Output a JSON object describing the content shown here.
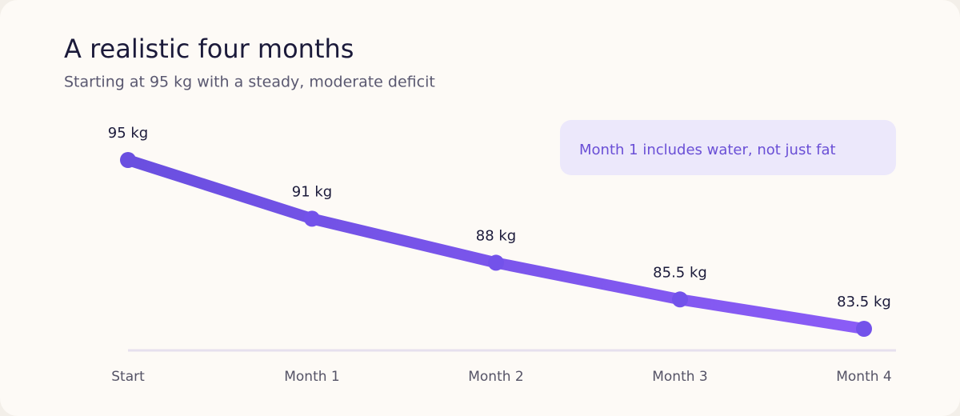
{
  "chart_data": {
    "type": "line",
    "title": "A realistic four months",
    "subtitle": "Starting at 95 kg with a steady, moderate deficit",
    "annotation": "Month 1 includes water, not just fat",
    "categories": [
      "Start",
      "Month 1",
      "Month 2",
      "Month 3",
      "Month 4"
    ],
    "values": [
      95,
      91,
      88,
      85.5,
      83.5
    ],
    "value_labels": [
      "95 kg",
      "91 kg",
      "88 kg",
      "85.5 kg",
      "83.5 kg"
    ],
    "color": "#6d4ee6"
  }
}
